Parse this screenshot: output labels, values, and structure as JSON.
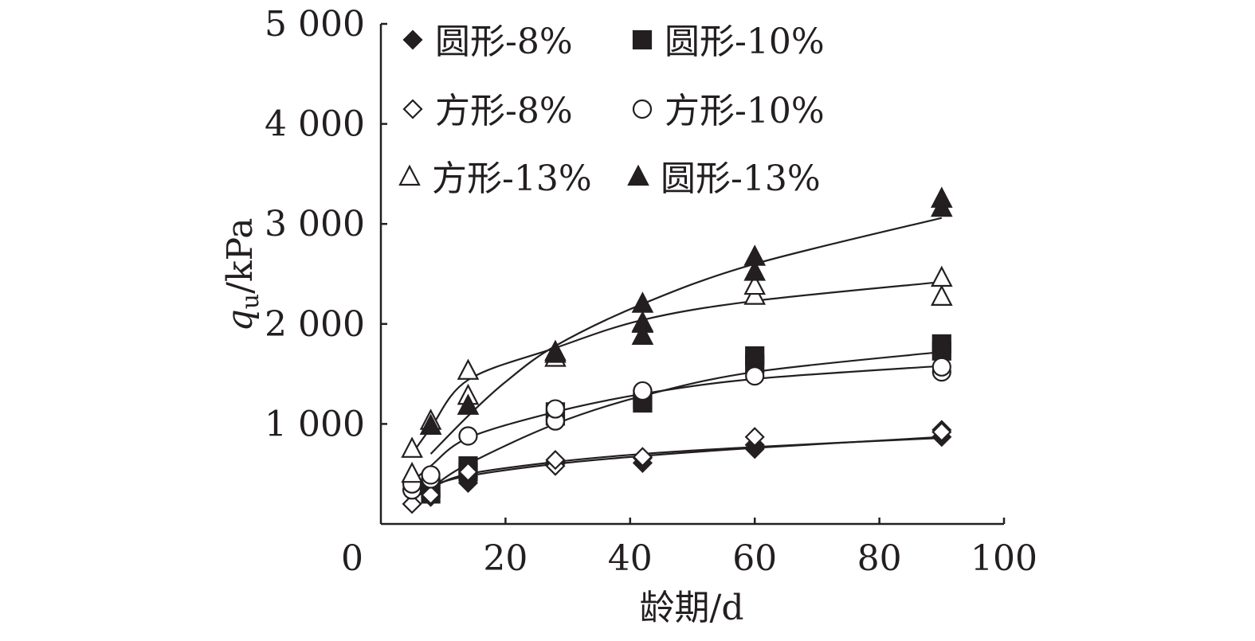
{
  "chart_data": {
    "type": "scatter",
    "title": "",
    "xlabel": "龄期/d",
    "ylabel": {
      "main": "q",
      "sub": "u",
      "unit": "/kPa"
    },
    "xlim": [
      0,
      100
    ],
    "ylim": [
      0,
      5000
    ],
    "xticks": [
      0,
      20,
      40,
      60,
      80,
      100
    ],
    "xtick_labels": [
      "0",
      "20",
      "40",
      "60",
      "80",
      "100"
    ],
    "yticks": [
      1000,
      2000,
      3000,
      4000,
      5000
    ],
    "ytick_labels": [
      "1 000",
      "2 000",
      "3 000",
      "4 000",
      "5 000"
    ],
    "grid": false,
    "legend_position": "top, inside plot",
    "series": [
      {
        "name": "圆形-8%",
        "marker": "diamond-filled",
        "points": [
          [
            8,
            270
          ],
          [
            8,
            310
          ],
          [
            14,
            410
          ],
          [
            14,
            470
          ],
          [
            28,
            600
          ],
          [
            28,
            620
          ],
          [
            42,
            610
          ],
          [
            42,
            660
          ],
          [
            60,
            750
          ],
          [
            60,
            790
          ],
          [
            90,
            870
          ],
          [
            90,
            940
          ]
        ],
        "fit": [
          [
            5,
            300
          ],
          [
            8,
            380
          ],
          [
            14,
            480
          ],
          [
            28,
            600
          ],
          [
            42,
            680
          ],
          [
            60,
            760
          ],
          [
            90,
            870
          ]
        ]
      },
      {
        "name": "圆形-10%",
        "marker": "square-filled",
        "points": [
          [
            8,
            300
          ],
          [
            8,
            360
          ],
          [
            14,
            520
          ],
          [
            14,
            580
          ],
          [
            28,
            1080
          ],
          [
            28,
            1120
          ],
          [
            42,
            1210
          ],
          [
            42,
            1250
          ],
          [
            60,
            1600
          ],
          [
            60,
            1680
          ],
          [
            90,
            1730
          ],
          [
            90,
            1800
          ]
        ],
        "fit": [
          [
            5,
            250
          ],
          [
            8,
            360
          ],
          [
            14,
            600
          ],
          [
            28,
            1000
          ],
          [
            42,
            1280
          ],
          [
            60,
            1520
          ],
          [
            90,
            1720
          ]
        ]
      },
      {
        "name": "方形-8%",
        "marker": "diamond-open",
        "points": [
          [
            5,
            200
          ],
          [
            8,
            290
          ],
          [
            14,
            520
          ],
          [
            28,
            580
          ],
          [
            28,
            640
          ],
          [
            42,
            670
          ],
          [
            60,
            870
          ],
          [
            90,
            920
          ]
        ],
        "fit": [
          [
            5,
            260
          ],
          [
            8,
            360
          ],
          [
            14,
            500
          ],
          [
            28,
            620
          ],
          [
            42,
            700
          ],
          [
            60,
            770
          ],
          [
            90,
            860
          ]
        ]
      },
      {
        "name": "方形-10%",
        "marker": "circle-open",
        "points": [
          [
            5,
            340
          ],
          [
            5,
            400
          ],
          [
            8,
            450
          ],
          [
            8,
            490
          ],
          [
            14,
            880
          ],
          [
            28,
            1030
          ],
          [
            28,
            1150
          ],
          [
            42,
            1330
          ],
          [
            60,
            1480
          ],
          [
            90,
            1520
          ],
          [
            90,
            1570
          ]
        ],
        "fit": [
          [
            5,
            420
          ],
          [
            8,
            580
          ],
          [
            14,
            860
          ],
          [
            28,
            1120
          ],
          [
            42,
            1300
          ],
          [
            60,
            1450
          ],
          [
            90,
            1580
          ]
        ]
      },
      {
        "name": "方形-13%",
        "marker": "triangle-open",
        "points": [
          [
            5,
            500
          ],
          [
            5,
            750
          ],
          [
            8,
            980
          ],
          [
            8,
            1030
          ],
          [
            14,
            1280
          ],
          [
            14,
            1530
          ],
          [
            28,
            1660
          ],
          [
            28,
            1720
          ],
          [
            42,
            2000
          ],
          [
            60,
            2280
          ],
          [
            60,
            2380
          ],
          [
            90,
            2270
          ],
          [
            90,
            2460
          ]
        ],
        "fit": [
          [
            5,
            700
          ],
          [
            8,
            960
          ],
          [
            14,
            1440
          ],
          [
            28,
            1760
          ],
          [
            42,
            2040
          ],
          [
            60,
            2230
          ],
          [
            90,
            2420
          ]
        ]
      },
      {
        "name": "圆形-13%",
        "marker": "triangle-filled",
        "points": [
          [
            8,
            980
          ],
          [
            14,
            1180
          ],
          [
            28,
            1700
          ],
          [
            42,
            1880
          ],
          [
            42,
            2010
          ],
          [
            42,
            2200
          ],
          [
            60,
            2520
          ],
          [
            60,
            2670
          ],
          [
            90,
            3160
          ],
          [
            90,
            3250
          ]
        ],
        "fit": [
          [
            8,
            700
          ],
          [
            14,
            1080
          ],
          [
            20,
            1420
          ],
          [
            28,
            1780
          ],
          [
            42,
            2200
          ],
          [
            60,
            2600
          ],
          [
            90,
            3060
          ]
        ]
      }
    ]
  },
  "legend_items": [
    "圆形-8%",
    "圆形-10%",
    "方形-8%",
    "方形-10%",
    "方形-13%",
    "圆形-13%"
  ]
}
